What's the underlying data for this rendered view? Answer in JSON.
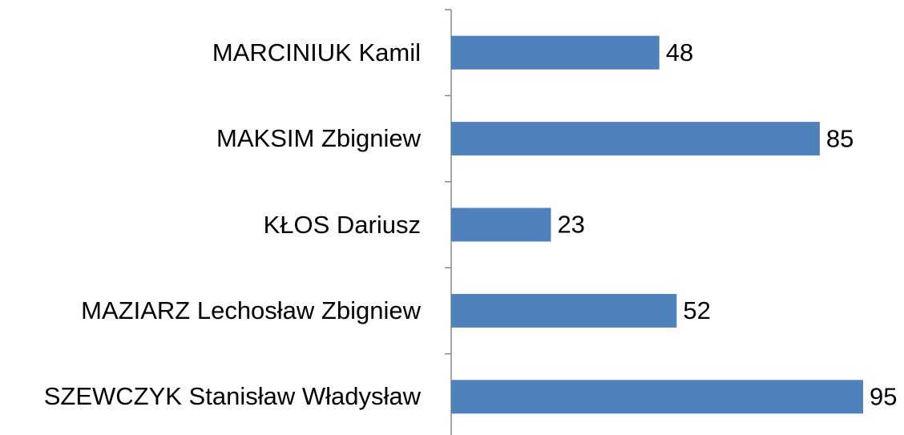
{
  "chart_data": {
    "type": "bar",
    "orientation": "horizontal",
    "categories": [
      "MARCINIUK Kamil",
      "MAKSIM Zbigniew",
      "KŁOS Dariusz",
      "MAZIARZ Lechosław Zbigniew",
      "SZEWCZYK Stanisław Władysław"
    ],
    "values": [
      48,
      85,
      23,
      52,
      95
    ],
    "color": "#4f81bd"
  }
}
